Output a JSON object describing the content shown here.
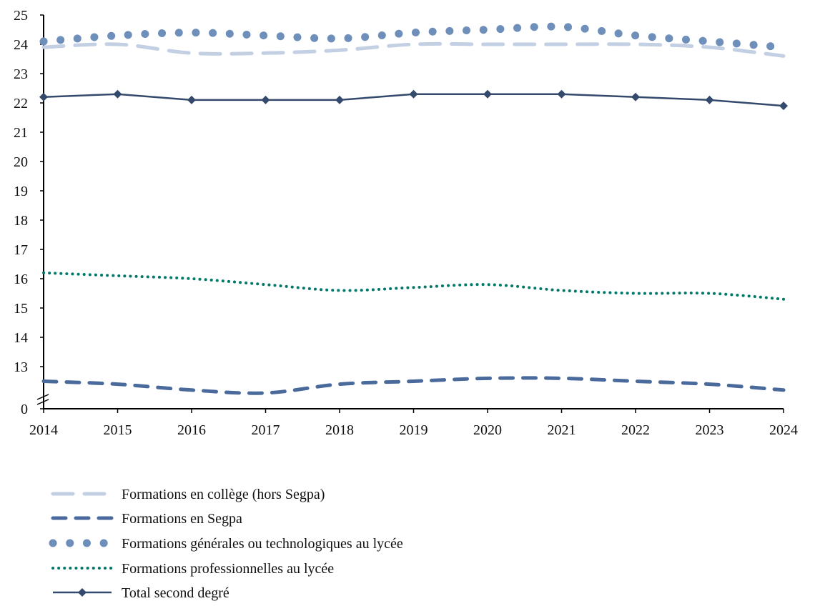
{
  "chart_data": {
    "type": "line",
    "title": "",
    "xlabel": "",
    "ylabel": "",
    "x": [
      "2014",
      "2015",
      "2016",
      "2017",
      "2018",
      "2019",
      "2020",
      "2021",
      "2022",
      "2023",
      "2024"
    ],
    "y_ticks": [
      "0",
      "13",
      "14",
      "15",
      "16",
      "17",
      "18",
      "19",
      "20",
      "21",
      "22",
      "23",
      "24",
      "25"
    ],
    "ylim": [
      0,
      25
    ],
    "y_axis_break": [
      0,
      12
    ],
    "smoothed": true,
    "grid": false,
    "legend_position": "bottom",
    "series": [
      {
        "name": "Formations en collège (hors Segpa)",
        "style": "long-dash",
        "color": "#c3cfe2",
        "values": [
          23.9,
          24.0,
          23.7,
          23.7,
          23.8,
          24.0,
          24.0,
          24.0,
          24.0,
          23.9,
          23.6
        ]
      },
      {
        "name": "Formations en Segpa",
        "style": "dash",
        "color": "#4a6a9c",
        "values": [
          12.5,
          12.4,
          12.2,
          12.1,
          12.4,
          12.5,
          12.6,
          12.6,
          12.5,
          12.4,
          12.2
        ]
      },
      {
        "name": "Formations générales ou technologiques au lycée",
        "style": "round-dot",
        "color": "#6f8fbb",
        "values": [
          24.1,
          24.3,
          24.4,
          24.3,
          24.2,
          24.4,
          24.5,
          24.6,
          24.3,
          24.1,
          23.9
        ]
      },
      {
        "name": "Formations professionnelles au lycée",
        "style": "small-dot",
        "color": "#00796b",
        "values": [
          16.2,
          16.1,
          16.0,
          15.8,
          15.6,
          15.7,
          15.8,
          15.6,
          15.5,
          15.5,
          15.3
        ]
      },
      {
        "name": "Total second degré",
        "style": "solid-diamond",
        "color": "#344a6c",
        "values": [
          22.2,
          22.3,
          22.1,
          22.1,
          22.1,
          22.3,
          22.3,
          22.3,
          22.2,
          22.1,
          21.9
        ]
      }
    ]
  }
}
